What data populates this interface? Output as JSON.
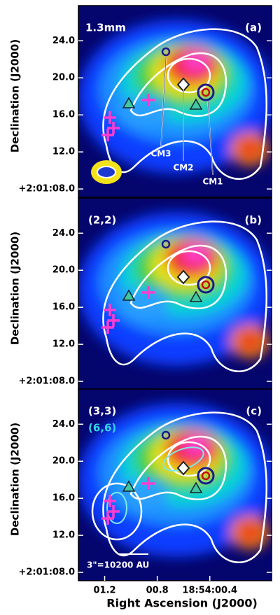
{
  "chart_data": [
    {
      "type": "image",
      "ylabel": "Declination (J2000)",
      "xlim": [
        1.4,
        -0.07
      ],
      "ylim": [
        7.1,
        27.8
      ],
      "yticks": [
        {
          "value": 24,
          "label": "24.0"
        },
        {
          "value": 20,
          "label": "20.0"
        },
        {
          "value": 16,
          "label": "16.0"
        },
        {
          "value": 12,
          "label": "12.0"
        },
        {
          "value": 8,
          "label": "+2:01:08.0"
        }
      ],
      "annotations": [
        {
          "text": "1.3mm",
          "color": "#ffffff"
        },
        {
          "text": "(a)",
          "color": "#ffffff"
        },
        {
          "text": "CM3",
          "color": "#ffffff"
        },
        {
          "text": "CM2",
          "color": "#ffffff"
        },
        {
          "text": "CM1",
          "color": "#ffffff"
        }
      ]
    },
    {
      "type": "image",
      "ylabel": "Declination (J2000)",
      "xlim": [
        1.4,
        -0.07
      ],
      "ylim": [
        7.1,
        27.8
      ],
      "yticks": [
        {
          "value": 24,
          "label": "24.0"
        },
        {
          "value": 20,
          "label": "20.0"
        },
        {
          "value": 16,
          "label": "16.0"
        },
        {
          "value": 12,
          "label": "12.0"
        },
        {
          "value": 8,
          "label": "+2:01:08.0"
        }
      ],
      "annotations": [
        {
          "text": "(2,2)",
          "color": "#ffffff"
        },
        {
          "text": "(b)",
          "color": "#ffffff"
        }
      ]
    },
    {
      "type": "image",
      "ylabel": "Declination (J2000)",
      "xlabel": "Right Ascension (J2000)",
      "xlim": [
        1.4,
        -0.07
      ],
      "ylim": [
        7.1,
        27.8
      ],
      "xticks": [
        {
          "value": 1.2,
          "label": "01.2"
        },
        {
          "value": 0.8,
          "label": "00.8"
        },
        {
          "value": 0.4,
          "label": "18:54:00.4"
        }
      ],
      "yticks": [
        {
          "value": 24,
          "label": "24.0"
        },
        {
          "value": 20,
          "label": "20.0"
        },
        {
          "value": 16,
          "label": "16.0"
        },
        {
          "value": 12,
          "label": "12.0"
        },
        {
          "value": 8,
          "label": "+2:01:08.0"
        }
      ],
      "annotations": [
        {
          "text": "(3,3)",
          "color": "#ffffff"
        },
        {
          "text": "(6,6)",
          "color": "#33d6e8"
        },
        {
          "text": "(c)",
          "color": "#ffffff"
        },
        {
          "text": "3\"=10200 AU",
          "color": "#ffffff"
        }
      ]
    }
  ]
}
